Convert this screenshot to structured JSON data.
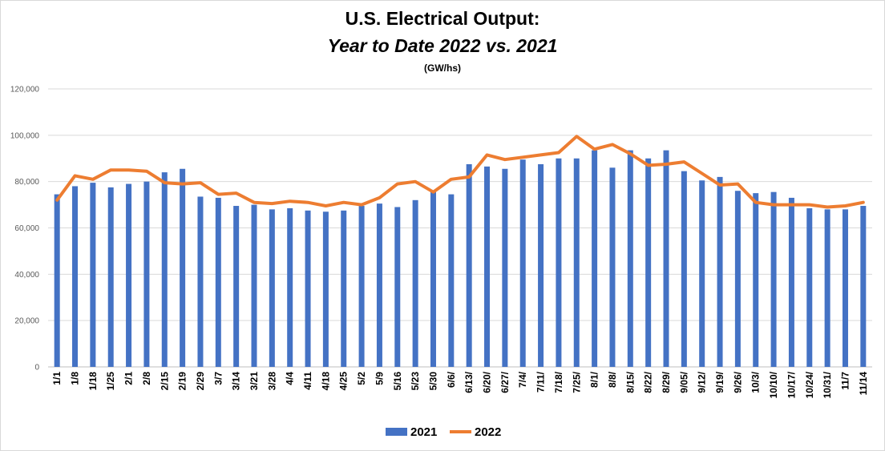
{
  "chart_data": {
    "type": "bar",
    "title": "U.S. Electrical Output:",
    "subtitle": "Year to Date 2022 vs. 2021",
    "unit_label": "(GW/hs)",
    "xlabel": "",
    "ylabel": "",
    "ylim": [
      0,
      120000
    ],
    "yticks": [
      0,
      20000,
      40000,
      60000,
      80000,
      100000,
      120000
    ],
    "ytick_labels": [
      "0",
      "20,000",
      "40,000",
      "60,000",
      "80,000",
      "100,000",
      "120,000"
    ],
    "grid": true,
    "legend_position": "bottom",
    "categories": [
      "1/1",
      "1/8",
      "1/18",
      "1/25",
      "2/1",
      "2/8",
      "2/15",
      "2/19",
      "2/29",
      "3/7",
      "3/14",
      "3/21",
      "3/28",
      "4/4",
      "4/11",
      "4/18",
      "4/25",
      "5/2",
      "5/9",
      "5/16",
      "5/23",
      "5/30",
      "6/6/",
      "6/13/",
      "6/20/",
      "6/27/",
      "7/4/",
      "7/11/",
      "7/18/",
      "7/25/",
      "8/1/",
      "8/8/",
      "8/15/",
      "8/22/",
      "8/29/",
      "9/05/",
      "9/12/",
      "9/19/",
      "9/26/",
      "10/3/",
      "10/10/",
      "10/17/",
      "10/24/",
      "10/31/",
      "11/7",
      "11/14"
    ],
    "series": [
      {
        "name": "2021",
        "type": "bar",
        "color": "#4472c4",
        "values": [
          74500,
          78000,
          79500,
          77500,
          79000,
          80000,
          84000,
          85500,
          73500,
          73000,
          69500,
          70000,
          68000,
          68500,
          67500,
          67000,
          67500,
          69500,
          70500,
          69000,
          72000,
          76000,
          74500,
          87500,
          86500,
          85500,
          89500,
          87500,
          90000,
          90000,
          93500,
          86000,
          93500,
          90000,
          93500,
          84500,
          80500,
          82000,
          76000,
          75000,
          75500,
          73000,
          68500,
          68000,
          68000,
          69500
        ]
      },
      {
        "name": "2022",
        "type": "line",
        "color": "#ed7d31",
        "values": [
          72000,
          82500,
          81000,
          85000,
          85000,
          84500,
          79500,
          79000,
          79500,
          74500,
          75000,
          71000,
          70500,
          71500,
          71000,
          69500,
          71000,
          70000,
          73000,
          79000,
          80000,
          75500,
          81000,
          82000,
          91500,
          89500,
          90500,
          91500,
          92500,
          99500,
          94000,
          96000,
          92000,
          87000,
          87500,
          88500,
          83500,
          78500,
          79000,
          71000,
          70000,
          70000,
          70000,
          69000,
          69500,
          71000
        ]
      }
    ]
  }
}
